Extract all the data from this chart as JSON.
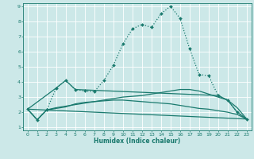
{
  "xlabel": "Humidex (Indice chaleur)",
  "xlim": [
    -0.5,
    23.5
  ],
  "ylim": [
    0.8,
    9.2
  ],
  "xticks": [
    0,
    1,
    2,
    3,
    4,
    5,
    6,
    7,
    8,
    9,
    10,
    11,
    12,
    13,
    14,
    15,
    16,
    17,
    18,
    19,
    20,
    21,
    22,
    23
  ],
  "yticks": [
    1,
    2,
    3,
    4,
    5,
    6,
    7,
    8,
    9
  ],
  "bg_color": "#cce8e8",
  "line_color": "#1a7a6e",
  "grid_color": "#ffffff",
  "line_main": {
    "x": [
      0,
      1,
      2,
      3,
      4,
      5,
      6,
      7,
      8,
      9,
      10,
      11,
      12,
      13,
      14,
      15,
      16,
      17,
      18,
      19,
      20,
      21,
      22,
      23
    ],
    "y": [
      2.2,
      1.5,
      2.15,
      3.6,
      4.1,
      3.5,
      3.4,
      3.35,
      4.1,
      5.1,
      6.5,
      7.5,
      7.8,
      7.6,
      8.5,
      9.0,
      8.2,
      6.2,
      4.5,
      4.4,
      3.1,
      2.8,
      2.0,
      1.55
    ]
  },
  "line_diag1": {
    "x": [
      0,
      3,
      4,
      5,
      20,
      21,
      22,
      23
    ],
    "y": [
      2.2,
      3.6,
      4.1,
      3.5,
      3.1,
      2.8,
      2.0,
      1.55
    ]
  },
  "line_diag2": {
    "x": [
      0,
      23
    ],
    "y": [
      2.2,
      1.55
    ]
  },
  "line_curve1": {
    "x": [
      0,
      1,
      2,
      3,
      4,
      5,
      6,
      7,
      8,
      9,
      10,
      11,
      12,
      13,
      14,
      15,
      16,
      17,
      18,
      19,
      20,
      21,
      22,
      23
    ],
    "y": [
      2.2,
      1.5,
      2.15,
      2.3,
      2.4,
      2.5,
      2.6,
      2.7,
      2.8,
      2.9,
      3.0,
      3.05,
      3.1,
      3.2,
      3.3,
      3.4,
      3.5,
      3.5,
      3.4,
      3.2,
      3.0,
      2.8,
      2.3,
      1.55
    ]
  },
  "line_curve2": {
    "x": [
      0,
      1,
      2,
      3,
      4,
      5,
      6,
      7,
      8,
      9,
      10,
      11,
      12,
      13,
      14,
      15,
      16,
      17,
      18,
      19,
      20,
      21,
      22,
      23
    ],
    "y": [
      2.2,
      1.5,
      2.15,
      2.25,
      2.35,
      2.55,
      2.65,
      2.7,
      2.75,
      2.8,
      2.8,
      2.75,
      2.7,
      2.65,
      2.6,
      2.55,
      2.45,
      2.35,
      2.25,
      2.2,
      2.1,
      2.0,
      1.85,
      1.55
    ]
  }
}
